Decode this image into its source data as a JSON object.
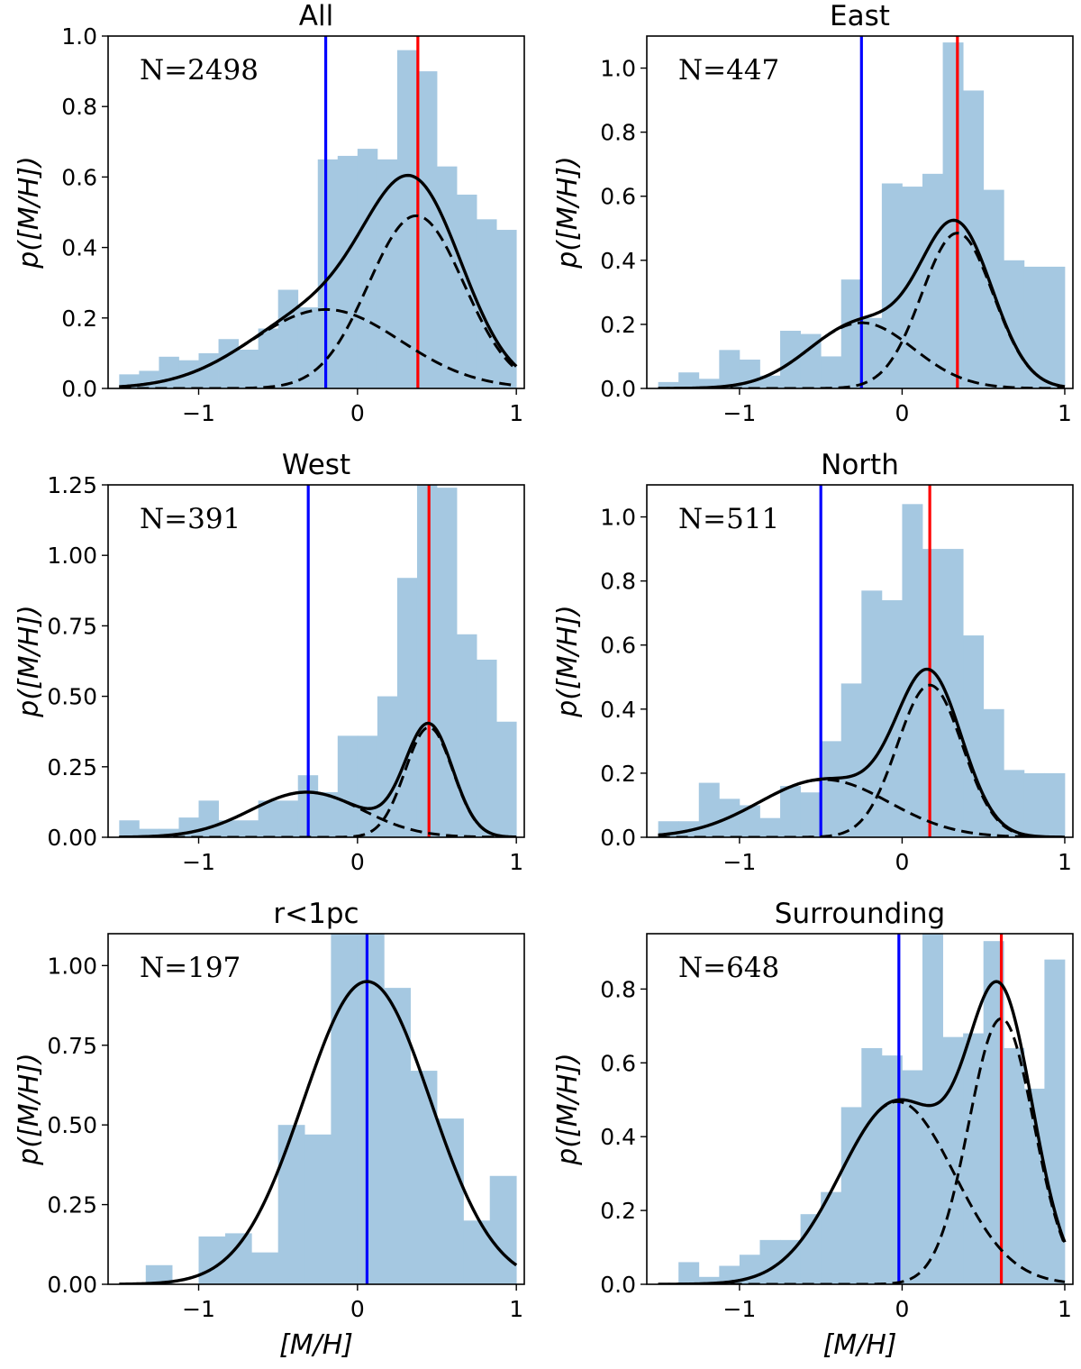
{
  "figure": {
    "colors": {
      "hist": "#a5c8e1",
      "metal_poor": "#0000ff",
      "metal_rich": "#ff0000",
      "fit": "#000000"
    }
  },
  "chart_data": [
    {
      "type": "bar",
      "title": "All",
      "count_label": "N=2498",
      "xlabel": "[M/H]",
      "ylabel": "p([M/H])",
      "xlim": [
        -1.57,
        1.05
      ],
      "ylim": [
        0,
        1.0
      ],
      "xticks": [
        -1,
        0,
        1
      ],
      "xtick_labels": [
        "−1",
        "0",
        "1"
      ],
      "yticks": [
        0.0,
        0.2,
        0.4,
        0.6,
        0.8,
        1.0
      ],
      "ytick_labels": [
        "0.0",
        "0.2",
        "0.4",
        "0.6",
        "0.8",
        "1.0"
      ],
      "bin_edges": [
        -1.5,
        -1.375,
        -1.25,
        -1.125,
        -1.0,
        -0.875,
        -0.75,
        -0.625,
        -0.5,
        -0.375,
        -0.25,
        -0.125,
        0.0,
        0.125,
        0.25,
        0.375,
        0.5,
        0.625,
        0.75,
        0.875,
        1.0
      ],
      "values": [
        0.04,
        0.05,
        0.09,
        0.08,
        0.1,
        0.14,
        0.11,
        0.17,
        0.28,
        0.23,
        0.65,
        0.66,
        0.68,
        0.65,
        0.96,
        0.9,
        0.63,
        0.55,
        0.48,
        0.45
      ],
      "fit": {
        "components": [
          {
            "weight": 0.224,
            "mean": -0.2,
            "sigma": 0.47
          },
          {
            "weight": 0.49,
            "mean": 0.37,
            "sigma": 0.3
          }
        ]
      },
      "vlines": [
        {
          "name": "metal-poor-mean",
          "x": -0.2,
          "color": "#0000ff"
        },
        {
          "name": "metal-rich-mean",
          "x": 0.38,
          "color": "#ff0000"
        }
      ]
    },
    {
      "type": "bar",
      "title": "East",
      "count_label": "N=447",
      "xlabel": "[M/H]",
      "ylabel": "p([M/H])",
      "xlim": [
        -1.57,
        1.05
      ],
      "ylim": [
        0,
        1.1
      ],
      "xticks": [
        -1,
        0,
        1
      ],
      "xtick_labels": [
        "−1",
        "0",
        "1"
      ],
      "yticks": [
        0.0,
        0.2,
        0.4,
        0.6,
        0.8,
        1.0
      ],
      "ytick_labels": [
        "0.0",
        "0.2",
        "0.4",
        "0.6",
        "0.8",
        "1.0"
      ],
      "bin_edges": [
        -1.5,
        -1.375,
        -1.25,
        -1.125,
        -1.0,
        -0.875,
        -0.75,
        -0.625,
        -0.5,
        -0.375,
        -0.25,
        -0.125,
        0.0,
        0.125,
        0.25,
        0.375,
        0.5,
        0.625,
        0.75,
        0.875,
        1.0
      ],
      "values": [
        0.02,
        0.05,
        0.03,
        0.12,
        0.09,
        0.04,
        0.18,
        0.17,
        0.1,
        0.34,
        0.22,
        0.64,
        0.63,
        0.67,
        1.08,
        0.93,
        0.62,
        0.4,
        0.38,
        0.38
      ],
      "fit": {
        "components": [
          {
            "weight": 0.205,
            "mean": -0.25,
            "sigma": 0.32
          },
          {
            "weight": 0.485,
            "mean": 0.34,
            "sigma": 0.22
          }
        ]
      },
      "vlines": [
        {
          "name": "metal-poor-mean",
          "x": -0.25,
          "color": "#0000ff"
        },
        {
          "name": "metal-rich-mean",
          "x": 0.34,
          "color": "#ff0000"
        }
      ]
    },
    {
      "type": "bar",
      "title": "West",
      "count_label": "N=391",
      "xlabel": "[M/H]",
      "ylabel": "p([M/H])",
      "xlim": [
        -1.57,
        1.05
      ],
      "ylim": [
        0,
        1.25
      ],
      "xticks": [
        -1,
        0,
        1
      ],
      "xtick_labels": [
        "−1",
        "0",
        "1"
      ],
      "yticks": [
        0.0,
        0.25,
        0.5,
        0.75,
        1.0,
        1.25
      ],
      "ytick_labels": [
        "0.00",
        "0.25",
        "0.50",
        "0.75",
        "1.00",
        "1.25"
      ],
      "bin_edges": [
        -1.5,
        -1.375,
        -1.25,
        -1.125,
        -1.0,
        -0.875,
        -0.75,
        -0.625,
        -0.5,
        -0.375,
        -0.25,
        -0.125,
        0.0,
        0.125,
        0.25,
        0.375,
        0.5,
        0.625,
        0.75,
        0.875,
        1.0
      ],
      "values": [
        0.06,
        0.03,
        0.03,
        0.07,
        0.13,
        0.06,
        0.06,
        0.13,
        0.13,
        0.22,
        0.16,
        0.36,
        0.36,
        0.5,
        0.92,
        1.25,
        1.24,
        0.72,
        0.63,
        0.41
      ],
      "fit": {
        "components": [
          {
            "weight": 0.16,
            "mean": -0.32,
            "sigma": 0.35
          },
          {
            "weight": 0.39,
            "mean": 0.45,
            "sigma": 0.15
          }
        ]
      },
      "vlines": [
        {
          "name": "metal-poor-mean",
          "x": -0.31,
          "color": "#0000ff"
        },
        {
          "name": "metal-rich-mean",
          "x": 0.45,
          "color": "#ff0000"
        }
      ]
    },
    {
      "type": "bar",
      "title": "North",
      "count_label": "N=511",
      "xlabel": "[M/H]",
      "ylabel": "p([M/H])",
      "xlim": [
        -1.57,
        1.05
      ],
      "ylim": [
        0,
        1.1
      ],
      "xticks": [
        -1,
        0,
        1
      ],
      "xtick_labels": [
        "−1",
        "0",
        "1"
      ],
      "yticks": [
        0.0,
        0.2,
        0.4,
        0.6,
        0.8,
        1.0
      ],
      "ytick_labels": [
        "0.0",
        "0.2",
        "0.4",
        "0.6",
        "0.8",
        "1.0"
      ],
      "bin_edges": [
        -1.5,
        -1.375,
        -1.25,
        -1.125,
        -1.0,
        -0.875,
        -0.75,
        -0.625,
        -0.5,
        -0.375,
        -0.25,
        -0.125,
        0.0,
        0.125,
        0.25,
        0.375,
        0.5,
        0.625,
        0.75,
        0.875,
        1.0
      ],
      "values": [
        0.05,
        0.05,
        0.17,
        0.12,
        0.1,
        0.06,
        0.16,
        0.14,
        0.3,
        0.48,
        0.77,
        0.74,
        1.04,
        0.9,
        0.9,
        0.63,
        0.4,
        0.21,
        0.2,
        0.2
      ],
      "fit": {
        "components": [
          {
            "weight": 0.18,
            "mean": -0.48,
            "sigma": 0.4
          },
          {
            "weight": 0.475,
            "mean": 0.17,
            "sigma": 0.2
          }
        ]
      },
      "vlines": [
        {
          "name": "metal-poor-mean",
          "x": -0.5,
          "color": "#0000ff"
        },
        {
          "name": "metal-rich-mean",
          "x": 0.17,
          "color": "#ff0000"
        }
      ]
    },
    {
      "type": "bar",
      "title": "r<1pc",
      "count_label": "N=197",
      "xlabel": "[M/H]",
      "ylabel": "p([M/H])",
      "xlim": [
        -1.57,
        1.05
      ],
      "ylim": [
        0,
        1.1
      ],
      "xticks": [
        -1,
        0,
        1
      ],
      "xtick_labels": [
        "−1",
        "0",
        "1"
      ],
      "yticks": [
        0.0,
        0.25,
        0.5,
        0.75,
        1.0
      ],
      "ytick_labels": [
        "0.00",
        "0.25",
        "0.50",
        "0.75",
        "1.00"
      ],
      "bin_edges": [
        -1.5,
        -1.333,
        -1.167,
        -1.0,
        -0.833,
        -0.667,
        -0.5,
        -0.333,
        -0.167,
        0.0,
        0.167,
        0.333,
        0.5,
        0.667,
        0.833,
        1.0
      ],
      "values": [
        0.0,
        0.06,
        0.0,
        0.15,
        0.16,
        0.1,
        0.5,
        0.47,
        1.16,
        1.16,
        0.93,
        0.67,
        0.52,
        0.2,
        0.34
      ],
      "fit": {
        "components": [
          {
            "weight": 0.95,
            "mean": 0.06,
            "sigma": 0.4
          }
        ]
      },
      "vlines": [
        {
          "name": "mean",
          "x": 0.06,
          "color": "#0000ff"
        }
      ]
    },
    {
      "type": "bar",
      "title": "Surrounding",
      "count_label": "N=648",
      "xlabel": "[M/H]",
      "ylabel": "p([M/H])",
      "xlim": [
        -1.57,
        1.05
      ],
      "ylim": [
        0,
        0.95
      ],
      "xticks": [
        -1,
        0,
        1
      ],
      "xtick_labels": [
        "−1",
        "0",
        "1"
      ],
      "yticks": [
        0.0,
        0.2,
        0.4,
        0.6,
        0.8
      ],
      "ytick_labels": [
        "0.0",
        "0.2",
        "0.4",
        "0.6",
        "0.8"
      ],
      "bin_edges": [
        -1.5,
        -1.375,
        -1.25,
        -1.125,
        -1.0,
        -0.875,
        -0.75,
        -0.625,
        -0.5,
        -0.375,
        -0.25,
        -0.125,
        0.0,
        0.125,
        0.25,
        0.375,
        0.5,
        0.625,
        0.75,
        0.875,
        1.0
      ],
      "values": [
        0.0,
        0.06,
        0.02,
        0.05,
        0.08,
        0.12,
        0.12,
        0.19,
        0.25,
        0.48,
        0.64,
        0.62,
        0.58,
        0.95,
        0.67,
        0.68,
        0.93,
        0.64,
        0.53,
        0.88
      ],
      "fit": {
        "components": [
          {
            "weight": 0.495,
            "mean": -0.03,
            "sigma": 0.35
          },
          {
            "weight": 0.72,
            "mean": 0.61,
            "sigma": 0.2
          }
        ]
      },
      "vlines": [
        {
          "name": "metal-poor-mean",
          "x": -0.02,
          "color": "#0000ff"
        },
        {
          "name": "metal-rich-mean",
          "x": 0.61,
          "color": "#ff0000"
        }
      ]
    }
  ]
}
